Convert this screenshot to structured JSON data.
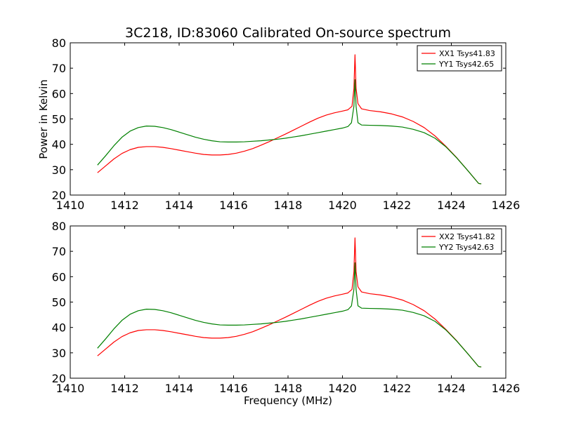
{
  "title": "3C218, ID:83060 Calibrated On-source spectrum",
  "xlabel": "Frequency (MHz)",
  "ylabel": "Power in Kelvin",
  "colors": {
    "xx": "#ff0000",
    "yy": "#008000",
    "axes": "#000000",
    "background": "#ffffff"
  },
  "chart_data": [
    {
      "type": "line",
      "xlim": [
        1410,
        1426
      ],
      "ylim": [
        20,
        80
      ],
      "xticks": [
        1410,
        1412,
        1414,
        1416,
        1418,
        1420,
        1422,
        1424,
        1426
      ],
      "yticks": [
        20,
        30,
        40,
        50,
        60,
        70,
        80
      ],
      "grid": false,
      "legend_position": "top-right",
      "series": [
        {
          "name": "XX1 Tsys41.83",
          "color": "#ff0000",
          "points": [
            [
              1411.0,
              28.8
            ],
            [
              1411.3,
              31.5
            ],
            [
              1411.6,
              34.2
            ],
            [
              1411.9,
              36.4
            ],
            [
              1412.2,
              37.9
            ],
            [
              1412.5,
              38.8
            ],
            [
              1412.8,
              39.1
            ],
            [
              1413.1,
              39.1
            ],
            [
              1413.4,
              38.8
            ],
            [
              1413.7,
              38.3
            ],
            [
              1414.0,
              37.7
            ],
            [
              1414.3,
              37.1
            ],
            [
              1414.6,
              36.5
            ],
            [
              1414.9,
              36.0
            ],
            [
              1415.2,
              35.8
            ],
            [
              1415.5,
              35.8
            ],
            [
              1415.8,
              36.0
            ],
            [
              1416.1,
              36.5
            ],
            [
              1416.4,
              37.3
            ],
            [
              1416.7,
              38.3
            ],
            [
              1417.0,
              39.6
            ],
            [
              1417.3,
              41.0
            ],
            [
              1417.6,
              42.5
            ],
            [
              1417.9,
              44.0
            ],
            [
              1418.2,
              45.6
            ],
            [
              1418.5,
              47.2
            ],
            [
              1418.8,
              48.8
            ],
            [
              1419.1,
              50.3
            ],
            [
              1419.4,
              51.5
            ],
            [
              1419.7,
              52.4
            ],
            [
              1420.0,
              53.1
            ],
            [
              1420.2,
              53.6
            ],
            [
              1420.35,
              55.0
            ],
            [
              1420.42,
              62.0
            ],
            [
              1420.46,
              75.3
            ],
            [
              1420.5,
              62.0
            ],
            [
              1420.57,
              56.0
            ],
            [
              1420.7,
              54.0
            ],
            [
              1421.0,
              53.3
            ],
            [
              1421.4,
              52.8
            ],
            [
              1421.8,
              52.0
            ],
            [
              1422.2,
              50.8
            ],
            [
              1422.6,
              49.0
            ],
            [
              1423.0,
              46.6
            ],
            [
              1423.4,
              43.3
            ],
            [
              1423.8,
              39.2
            ],
            [
              1424.2,
              34.7
            ],
            [
              1424.6,
              29.7
            ],
            [
              1425.0,
              24.6
            ],
            [
              1425.1,
              24.4
            ]
          ]
        },
        {
          "name": "YY1 Tsys42.65",
          "color": "#008000",
          "points": [
            [
              1411.0,
              31.8
            ],
            [
              1411.3,
              35.5
            ],
            [
              1411.6,
              39.4
            ],
            [
              1411.9,
              42.8
            ],
            [
              1412.2,
              45.2
            ],
            [
              1412.5,
              46.6
            ],
            [
              1412.8,
              47.2
            ],
            [
              1413.1,
              47.1
            ],
            [
              1413.4,
              46.6
            ],
            [
              1413.7,
              45.8
            ],
            [
              1414.0,
              44.8
            ],
            [
              1414.3,
              43.8
            ],
            [
              1414.6,
              42.8
            ],
            [
              1414.9,
              42.0
            ],
            [
              1415.2,
              41.4
            ],
            [
              1415.5,
              41.0
            ],
            [
              1415.8,
              40.9
            ],
            [
              1416.1,
              40.9
            ],
            [
              1416.4,
              41.0
            ],
            [
              1416.7,
              41.2
            ],
            [
              1417.0,
              41.4
            ],
            [
              1417.3,
              41.7
            ],
            [
              1417.6,
              42.0
            ],
            [
              1417.9,
              42.4
            ],
            [
              1418.2,
              42.9
            ],
            [
              1418.5,
              43.4
            ],
            [
              1418.8,
              44.0
            ],
            [
              1419.1,
              44.6
            ],
            [
              1419.4,
              45.2
            ],
            [
              1419.7,
              45.8
            ],
            [
              1420.0,
              46.4
            ],
            [
              1420.2,
              47.0
            ],
            [
              1420.33,
              48.5
            ],
            [
              1420.42,
              55.0
            ],
            [
              1420.46,
              65.5
            ],
            [
              1420.5,
              55.0
            ],
            [
              1420.57,
              48.5
            ],
            [
              1420.7,
              47.6
            ],
            [
              1421.0,
              47.5
            ],
            [
              1421.4,
              47.4
            ],
            [
              1421.8,
              47.2
            ],
            [
              1422.2,
              46.8
            ],
            [
              1422.6,
              45.9
            ],
            [
              1423.0,
              44.6
            ],
            [
              1423.4,
              42.4
            ],
            [
              1423.8,
              39.0
            ],
            [
              1424.2,
              34.6
            ],
            [
              1424.6,
              29.7
            ],
            [
              1425.0,
              24.6
            ],
            [
              1425.1,
              24.4
            ]
          ]
        }
      ]
    },
    {
      "type": "line",
      "xlim": [
        1410,
        1426
      ],
      "ylim": [
        20,
        80
      ],
      "xticks": [
        1410,
        1412,
        1414,
        1416,
        1418,
        1420,
        1422,
        1424,
        1426
      ],
      "yticks": [
        20,
        30,
        40,
        50,
        60,
        70,
        80
      ],
      "grid": false,
      "legend_position": "top-right",
      "series": [
        {
          "name": "XX2 Tsys41.82",
          "color": "#ff0000",
          "points": [
            [
              1411.0,
              28.8
            ],
            [
              1411.3,
              31.5
            ],
            [
              1411.6,
              34.2
            ],
            [
              1411.9,
              36.4
            ],
            [
              1412.2,
              37.9
            ],
            [
              1412.5,
              38.8
            ],
            [
              1412.8,
              39.1
            ],
            [
              1413.1,
              39.1
            ],
            [
              1413.4,
              38.8
            ],
            [
              1413.7,
              38.3
            ],
            [
              1414.0,
              37.7
            ],
            [
              1414.3,
              37.1
            ],
            [
              1414.6,
              36.5
            ],
            [
              1414.9,
              36.0
            ],
            [
              1415.2,
              35.8
            ],
            [
              1415.5,
              35.8
            ],
            [
              1415.8,
              36.0
            ],
            [
              1416.1,
              36.5
            ],
            [
              1416.4,
              37.3
            ],
            [
              1416.7,
              38.3
            ],
            [
              1417.0,
              39.6
            ],
            [
              1417.3,
              41.0
            ],
            [
              1417.6,
              42.5
            ],
            [
              1417.9,
              44.0
            ],
            [
              1418.2,
              45.6
            ],
            [
              1418.5,
              47.2
            ],
            [
              1418.8,
              48.8
            ],
            [
              1419.1,
              50.3
            ],
            [
              1419.4,
              51.5
            ],
            [
              1419.7,
              52.4
            ],
            [
              1420.0,
              53.1
            ],
            [
              1420.2,
              53.6
            ],
            [
              1420.35,
              55.0
            ],
            [
              1420.42,
              62.0
            ],
            [
              1420.46,
              75.3
            ],
            [
              1420.5,
              62.0
            ],
            [
              1420.57,
              56.0
            ],
            [
              1420.7,
              54.0
            ],
            [
              1421.0,
              53.3
            ],
            [
              1421.4,
              52.8
            ],
            [
              1421.8,
              52.0
            ],
            [
              1422.2,
              50.8
            ],
            [
              1422.6,
              49.0
            ],
            [
              1423.0,
              46.6
            ],
            [
              1423.4,
              43.3
            ],
            [
              1423.8,
              39.2
            ],
            [
              1424.2,
              34.7
            ],
            [
              1424.6,
              29.7
            ],
            [
              1425.0,
              24.6
            ],
            [
              1425.1,
              24.4
            ]
          ]
        },
        {
          "name": "YY2 Tsys42.63",
          "color": "#008000",
          "points": [
            [
              1411.0,
              31.8
            ],
            [
              1411.3,
              35.5
            ],
            [
              1411.6,
              39.4
            ],
            [
              1411.9,
              42.8
            ],
            [
              1412.2,
              45.2
            ],
            [
              1412.5,
              46.6
            ],
            [
              1412.8,
              47.2
            ],
            [
              1413.1,
              47.1
            ],
            [
              1413.4,
              46.6
            ],
            [
              1413.7,
              45.8
            ],
            [
              1414.0,
              44.8
            ],
            [
              1414.3,
              43.8
            ],
            [
              1414.6,
              42.8
            ],
            [
              1414.9,
              42.0
            ],
            [
              1415.2,
              41.4
            ],
            [
              1415.5,
              41.0
            ],
            [
              1415.8,
              40.9
            ],
            [
              1416.1,
              40.9
            ],
            [
              1416.4,
              41.0
            ],
            [
              1416.7,
              41.2
            ],
            [
              1417.0,
              41.4
            ],
            [
              1417.3,
              41.7
            ],
            [
              1417.6,
              42.0
            ],
            [
              1417.9,
              42.4
            ],
            [
              1418.2,
              42.9
            ],
            [
              1418.5,
              43.4
            ],
            [
              1418.8,
              44.0
            ],
            [
              1419.1,
              44.6
            ],
            [
              1419.4,
              45.2
            ],
            [
              1419.7,
              45.8
            ],
            [
              1420.0,
              46.4
            ],
            [
              1420.2,
              47.0
            ],
            [
              1420.33,
              48.5
            ],
            [
              1420.42,
              55.0
            ],
            [
              1420.46,
              65.5
            ],
            [
              1420.5,
              55.0
            ],
            [
              1420.57,
              48.5
            ],
            [
              1420.7,
              47.6
            ],
            [
              1421.0,
              47.5
            ],
            [
              1421.4,
              47.4
            ],
            [
              1421.8,
              47.2
            ],
            [
              1422.2,
              46.8
            ],
            [
              1422.6,
              45.9
            ],
            [
              1423.0,
              44.6
            ],
            [
              1423.4,
              42.4
            ],
            [
              1423.8,
              39.0
            ],
            [
              1424.2,
              34.6
            ],
            [
              1424.6,
              29.7
            ],
            [
              1425.0,
              24.6
            ],
            [
              1425.1,
              24.4
            ]
          ]
        }
      ]
    }
  ]
}
